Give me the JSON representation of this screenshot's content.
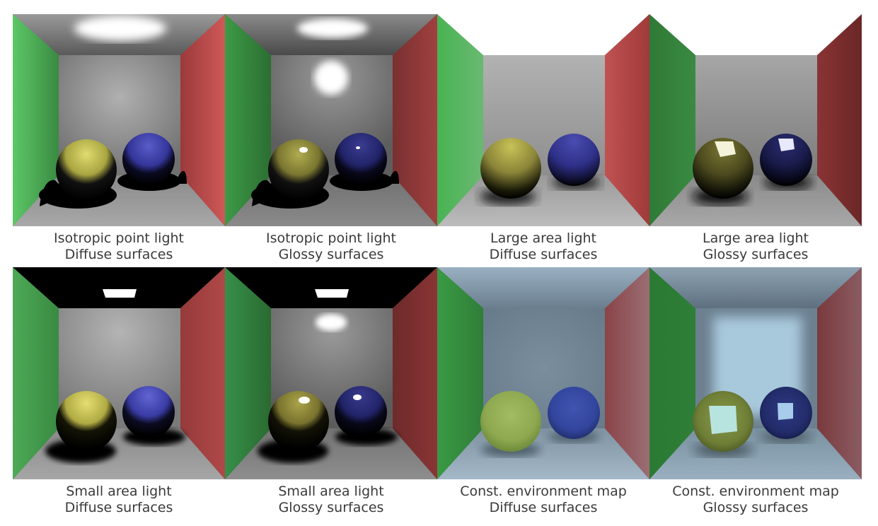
{
  "panels": [
    {
      "line1": "Isotropic point light",
      "line2": "Diffuse surfaces",
      "light": "point",
      "surface": "diffuse"
    },
    {
      "line1": "Isotropic point light",
      "line2": "Glossy surfaces",
      "light": "point",
      "surface": "glossy"
    },
    {
      "line1": "Large area light",
      "line2": "Diffuse surfaces",
      "light": "large-area",
      "surface": "diffuse"
    },
    {
      "line1": "Large area light",
      "line2": "Glossy surfaces",
      "light": "large-area",
      "surface": "glossy"
    },
    {
      "line1": "Small area light",
      "line2": "Diffuse surfaces",
      "light": "small-area",
      "surface": "diffuse"
    },
    {
      "line1": "Small area light",
      "line2": "Glossy surfaces",
      "light": "small-area",
      "surface": "glossy"
    },
    {
      "line1": "Const. environment map",
      "line2": "Diffuse surfaces",
      "light": "environment",
      "surface": "diffuse"
    },
    {
      "line1": "Const. environment map",
      "line2": "Glossy surfaces",
      "light": "environment",
      "surface": "glossy"
    }
  ],
  "colors": {
    "left_wall": "#3fa04a",
    "right_wall": "#b84545",
    "yellow_sphere": "#c9c44f",
    "blue_sphere": "#3c3fa0",
    "caption_text": "#3a3a3a"
  }
}
